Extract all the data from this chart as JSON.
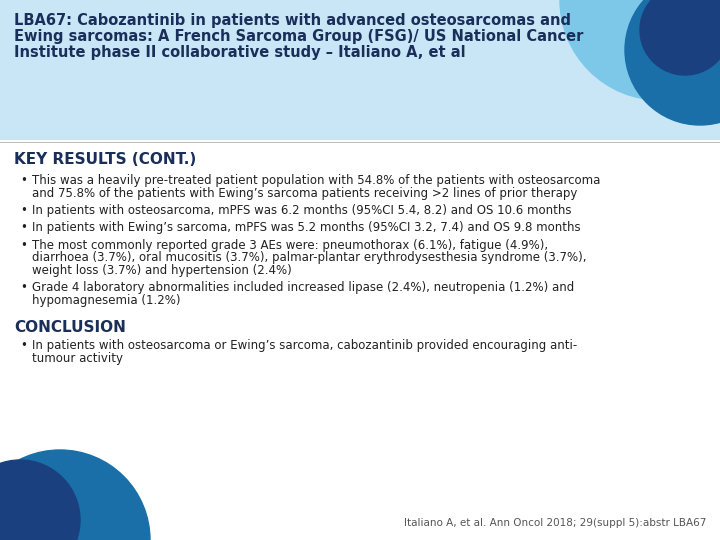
{
  "bg_color": "#ffffff",
  "header_bg_color": "#c8e6f5",
  "title_text_lines": [
    "LBA67: Cabozantinib in patients with advanced osteosarcomas and",
    "Ewing sarcomas: A French Sarcoma Group (FSG)/ US National Cancer",
    "Institute phase II collaborative study – Italiano A, et al"
  ],
  "title_color": "#1a2e5a",
  "title_fontsize": 10.5,
  "section1_header": "KEY RESULTS (CONT.)",
  "section1_color": "#1a2e5a",
  "section1_fontsize": 11.0,
  "bullets": [
    "This was a heavily pre-treated patient population with 54.8% of the patients with osteosarcoma and 75.8% of the patients with Ewing’s sarcoma patients receiving >2 lines of prior therapy",
    "In patients with osteosarcoma, mPFS was 6.2 months (95%CI 5.4, 8.2) and OS 10.6 months",
    "In patients with Ewing’s sarcoma, mPFS was 5.2 months (95%CI 3.2, 7.4) and OS 9.8 months",
    "The most commonly reported grade 3 AEs were: pneumothorax (6.1%), fatigue (4.9%), diarrhoea (3.7%), oral mucositis (3.7%), palmar-plantar erythrodysesthesia syndrome (3.7%), weight loss (3.7%) and hypertension (2.4%)",
    "Grade 4 laboratory abnormalities included increased lipase (2.4%), neutropenia (1.2%) and hypomagnesemia (1.2%)"
  ],
  "bullet_fontsize": 8.5,
  "bullet_color": "#222222",
  "section2_header": "CONCLUSION",
  "section2_color": "#1a2e5a",
  "section2_fontsize": 11.0,
  "conclusion_bullets": [
    "In patients with osteosarcoma or Ewing’s sarcoma, cabozantinib provided encouraging anti-tumour activity"
  ],
  "footer_text": "Italiano A, et al. Ann Oncol 2018; 29(suppl 5):abstr LBA67",
  "footer_fontsize": 7.5,
  "footer_color": "#555555",
  "circle_light": "#7dc8e8",
  "circle_dark1": "#1a6fa8",
  "circle_dark2": "#1a4080"
}
